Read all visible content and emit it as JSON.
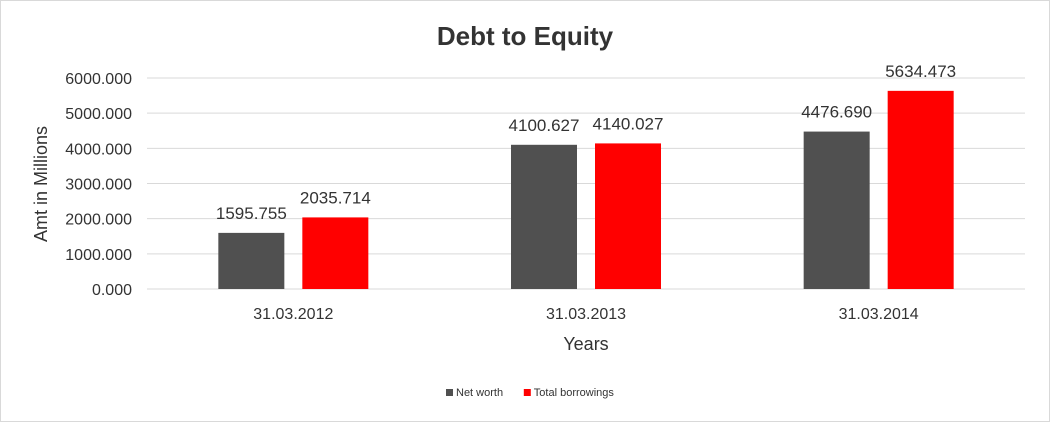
{
  "chart_data": {
    "type": "bar",
    "title": "Debt to Equity",
    "xlabel": "Years",
    "ylabel": "Amt in Millions",
    "categories": [
      "31.03.2012",
      "31.03.2013",
      "31.03.2014"
    ],
    "series": [
      {
        "name": "Net worth",
        "values": [
          1595.755,
          4100.627,
          4476.69
        ],
        "labels": [
          "1595.755",
          "4100.627",
          "4476.690"
        ],
        "color": "#505050"
      },
      {
        "name": "Total borrowings",
        "values": [
          2035.714,
          4140.027,
          5634.473
        ],
        "labels": [
          "2035.714",
          "4140.027",
          "5634.473"
        ],
        "color": "#ff0000"
      }
    ],
    "ylim": [
      0,
      6000
    ],
    "yticks": [
      0,
      1000,
      2000,
      3000,
      4000,
      5000,
      6000
    ],
    "ytick_labels": [
      "0.000",
      "1000.000",
      "2000.000",
      "3000.000",
      "4000.000",
      "5000.000",
      "6000.000"
    ],
    "grid": true,
    "legend_position": "bottom"
  }
}
